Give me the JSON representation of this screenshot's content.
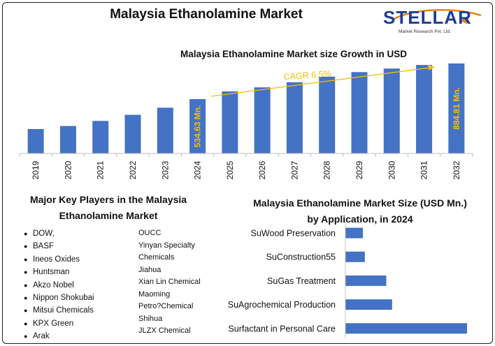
{
  "header": {
    "title": "Malaysia Ethanolamine Market"
  },
  "logo": {
    "word": "STELLAR",
    "subtitle": "Market Research Pvt. Ltd."
  },
  "colors": {
    "bar": "#4472c4",
    "annotation": "#f5c000",
    "axis": "#bfbfbf"
  },
  "chart_data": [
    {
      "type": "bar",
      "title": "Malaysia Ethanolamine Market size Growth in USD",
      "categories": [
        "2019",
        "2020",
        "2021",
        "2022",
        "2023",
        "2024",
        "2025",
        "2026",
        "2027",
        "2028",
        "2029",
        "2030",
        "2031",
        "2032"
      ],
      "values": [
        240,
        270,
        320,
        380,
        450,
        534.63,
        610,
        650,
        700,
        755,
        800,
        835,
        870,
        884.81
      ],
      "ylim": [
        0,
        960
      ],
      "grid": false,
      "legend": "none",
      "annotations": {
        "cagr": "CAGR 6.5%",
        "start_label": "534.63 Mn.",
        "end_label": "884.81 Mn."
      }
    },
    {
      "type": "bar",
      "orientation": "horizontal",
      "title": "Malaysia Ethanolamine Market Size (USD Mn.) by Application, in 2024",
      "categories": [
        "SuWood Preservation",
        "SuConstruction55",
        "SuGas Treatment",
        "SuAgrochemical Production",
        "Surfactant in Personal Care"
      ],
      "values": [
        18,
        20,
        42,
        48,
        125
      ],
      "xlim": [
        0,
        130
      ],
      "grid": false,
      "legend": "none"
    }
  ],
  "players": {
    "title": "Major Key Players in the Malaysia Ethanolamine Market",
    "column1": [
      "DOW,",
      "BASF",
      "Ineos Oxides",
      "Huntsman",
      "Akzo Nobel",
      "Nippon Shokubai",
      "Mitsui Chemicals",
      "KPX Green",
      "Arak"
    ],
    "column2": [
      "OUCC",
      "Yinyan Specialty",
      "Chemicals",
      "Jiahua",
      "Xian Lin Chemical",
      "Maoming",
      "Petro?Chemical",
      "Shihua",
      "JLZX Chemical"
    ]
  },
  "application": {
    "title": "Malaysia Ethanolamine Market Size (USD Mn.) by Application, in 2024"
  }
}
